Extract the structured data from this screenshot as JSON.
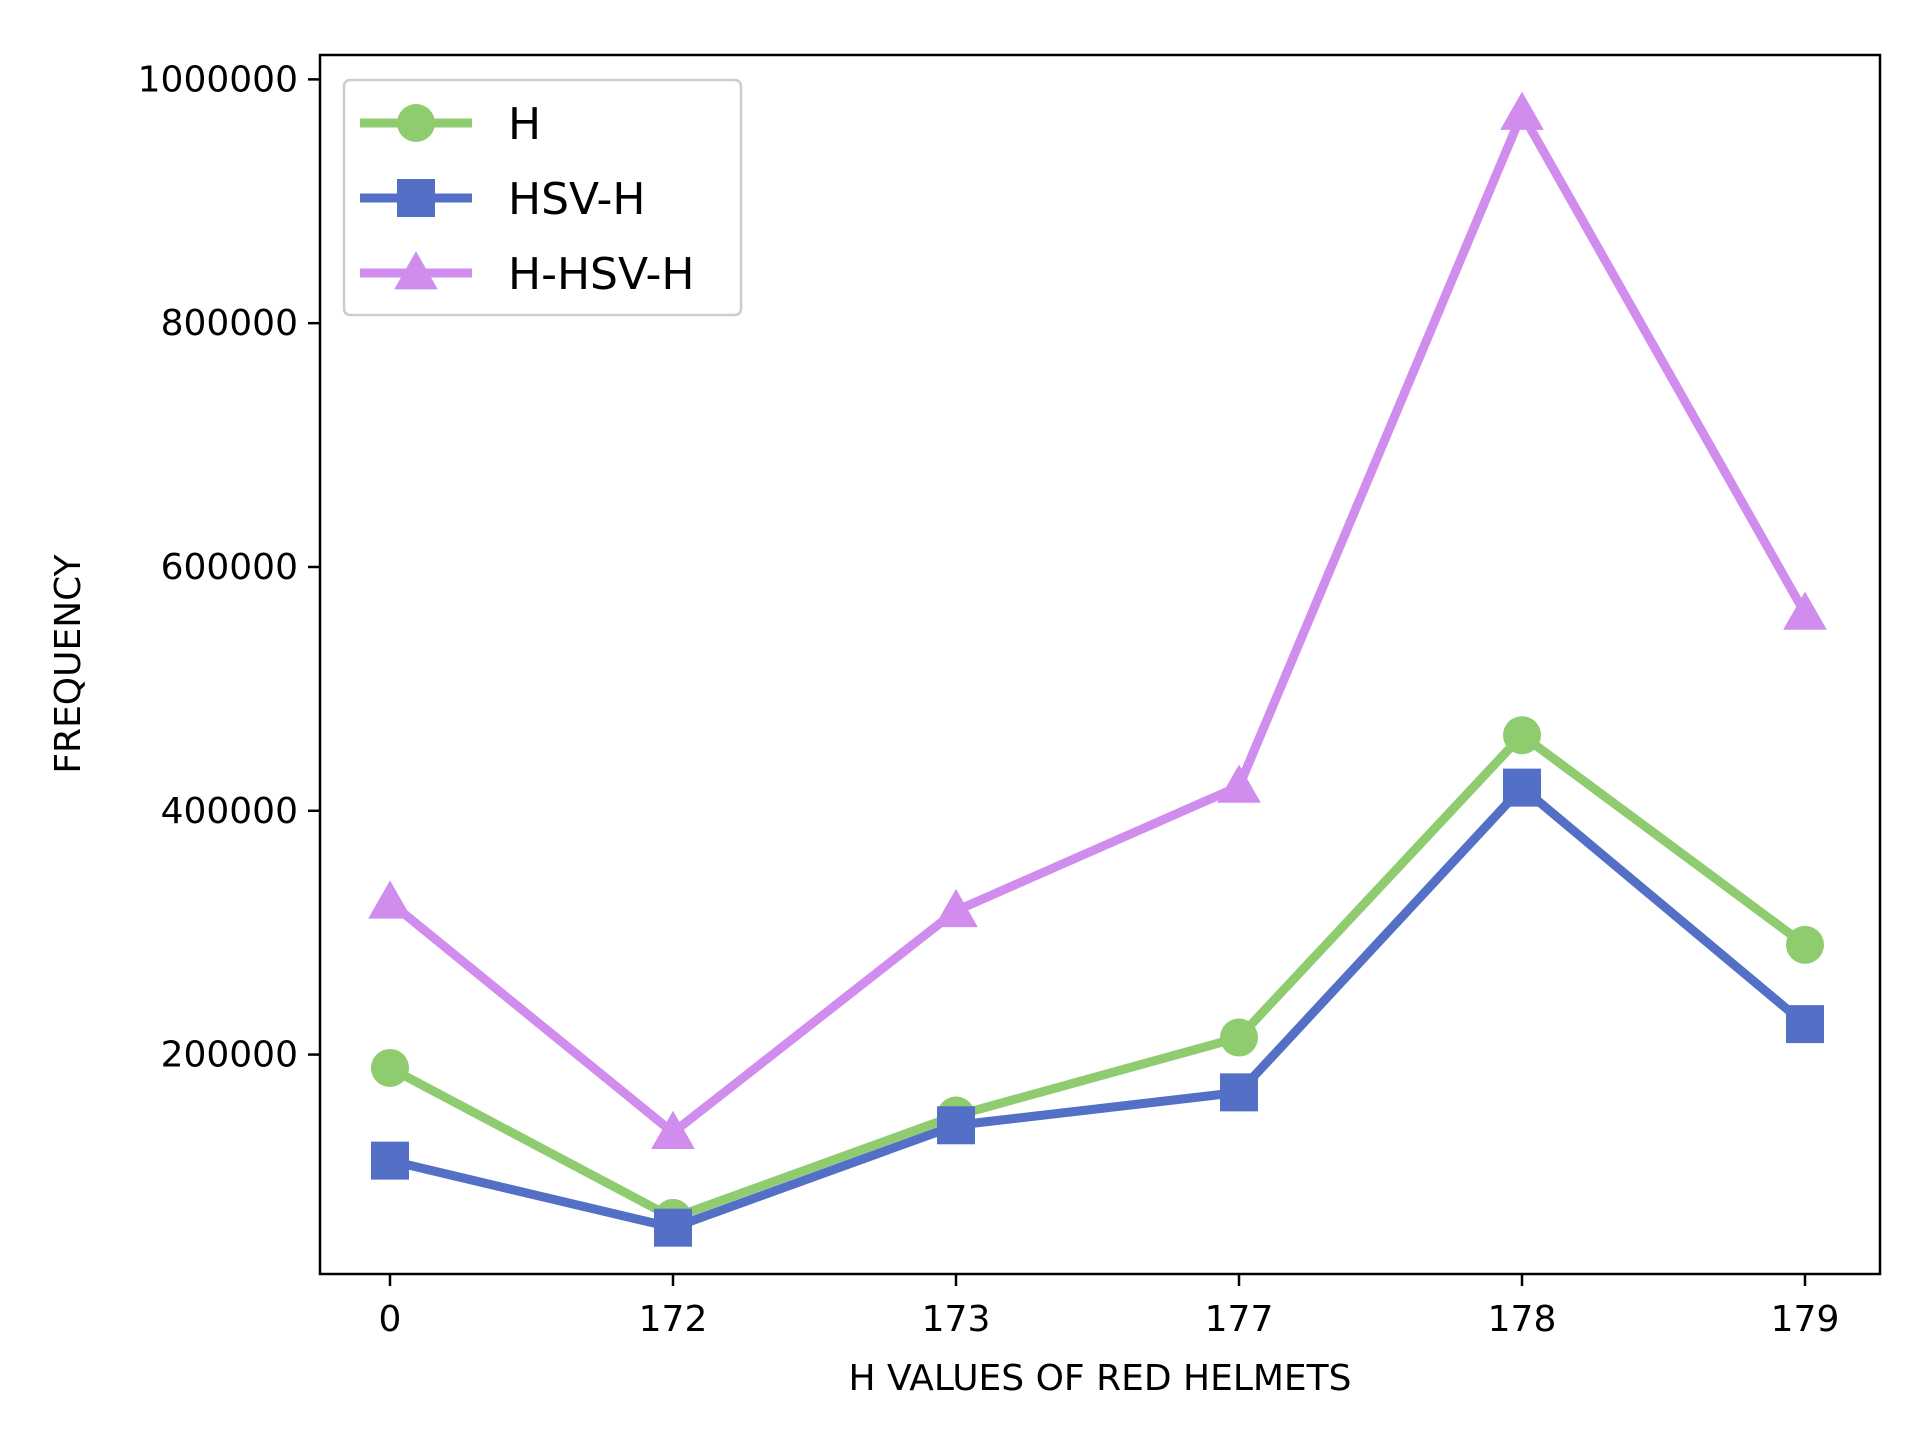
{
  "chart_data": {
    "type": "line",
    "title": "",
    "xlabel": "H VALUES OF RED HELMETS",
    "ylabel": "FREQUENCY",
    "categories": [
      "0",
      "172",
      "173",
      "177",
      "178",
      "179"
    ],
    "yticks": [
      200000,
      400000,
      600000,
      800000,
      1000000
    ],
    "ylim": [
      20000,
      1020000
    ],
    "grid": false,
    "legend_position": "upper-left",
    "series": [
      {
        "name": "H",
        "color": "#8fcb6f",
        "marker": "circle",
        "values": [
          189000,
          66000,
          150000,
          214000,
          462000,
          290000
        ]
      },
      {
        "name": "HSV-H",
        "color": "#5470c6",
        "marker": "square",
        "values": [
          113000,
          58000,
          142000,
          169000,
          419000,
          225000
        ]
      },
      {
        "name": "H-HSV-H",
        "color": "#d18ded",
        "marker": "triangle",
        "values": [
          325000,
          136000,
          318000,
          420000,
          972000,
          562000
        ]
      }
    ]
  }
}
